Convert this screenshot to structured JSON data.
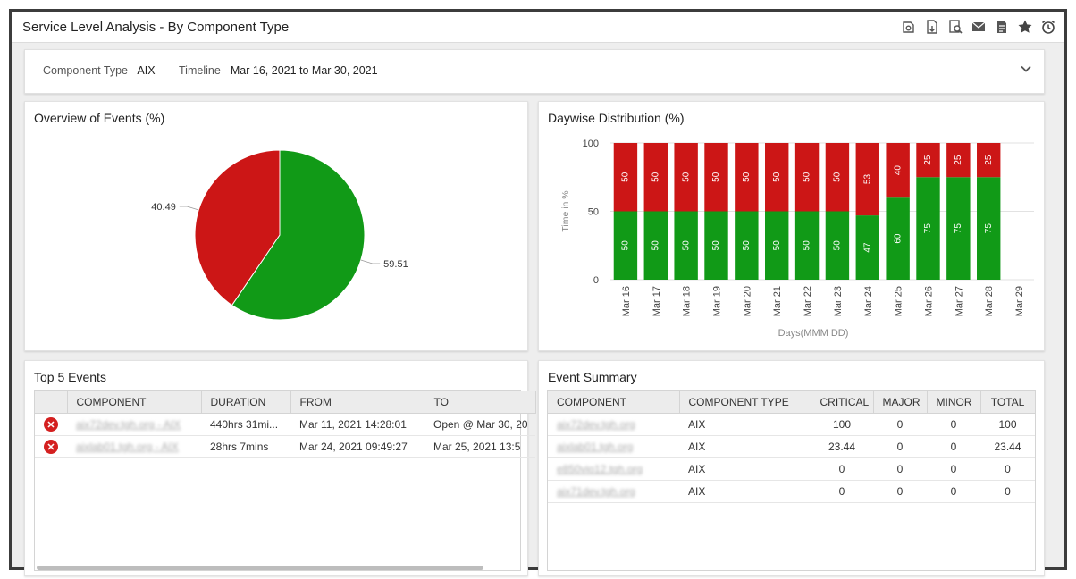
{
  "header": {
    "title": "Service Level Analysis - By Component Type",
    "toolbar": [
      "wrench-settings-icon",
      "pdf-export-icon",
      "search-report-icon",
      "mail-icon",
      "document-icon",
      "favorite-star-icon",
      "alarm-clock-icon"
    ]
  },
  "filters": {
    "component_label": "Component Type - ",
    "component_value": "AIX",
    "timeline_label": "Timeline - ",
    "timeline_value": "Mar 16, 2021 to Mar 30, 2021"
  },
  "colors": {
    "critical": "#cc1616",
    "ok": "#119a17"
  },
  "overview": {
    "title": "Overview of Events (%)",
    "chart_data": {
      "type": "pie",
      "labels": [
        "40.49",
        "59.51"
      ],
      "values": [
        40.49,
        59.51
      ],
      "colors": [
        "#cc1616",
        "#119a17"
      ]
    }
  },
  "daywise": {
    "title": "Daywise Distribution (%)",
    "chart_data": {
      "type": "bar",
      "stacked": true,
      "xlabel": "Days(MMM DD)",
      "ylabel": "Time in %",
      "ylim": [
        0,
        100
      ],
      "yticks": [
        0,
        50,
        100
      ],
      "categories": [
        "Mar 16",
        "Mar 17",
        "Mar 18",
        "Mar 19",
        "Mar 20",
        "Mar 21",
        "Mar 22",
        "Mar 23",
        "Mar 24",
        "Mar 25",
        "Mar 26",
        "Mar 27",
        "Mar 28",
        "Mar 29"
      ],
      "series": [
        {
          "color": "#119a17",
          "values": [
            50,
            50,
            50,
            50,
            50,
            50,
            50,
            50,
            47,
            60,
            75,
            75,
            75,
            null
          ]
        },
        {
          "color": "#cc1616",
          "values": [
            50,
            50,
            50,
            50,
            50,
            50,
            50,
            50,
            53,
            40,
            25,
            25,
            25,
            null
          ]
        }
      ]
    }
  },
  "top_events": {
    "title": "Top 5 Events",
    "columns": [
      "",
      "COMPONENT",
      "DURATION",
      "FROM",
      "TO"
    ],
    "rows": [
      {
        "component": "aix72dev.tgh.org - AIX",
        "duration": "440hrs 31mi...",
        "from": "Mar 11, 2021 14:28:01",
        "to": "Open @ Mar 30, 20"
      },
      {
        "component": "aixlab01.tgh.org - AIX",
        "duration": "28hrs 7mins",
        "from": "Mar 24, 2021 09:49:27",
        "to": "Mar 25, 2021 13:5"
      }
    ]
  },
  "event_summary": {
    "title": "Event Summary",
    "columns": [
      "COMPONENT",
      "COMPONENT TYPE",
      "CRITICAL",
      "MAJOR",
      "MINOR",
      "TOTAL"
    ],
    "rows": [
      {
        "component": "aix72dev.tgh.org",
        "type": "AIX",
        "critical": "100",
        "major": "0",
        "minor": "0",
        "total": "100"
      },
      {
        "component": "aixlab01.tgh.org",
        "type": "AIX",
        "critical": "23.44",
        "major": "0",
        "minor": "0",
        "total": "23.44"
      },
      {
        "component": "e850vio12.tgh.org",
        "type": "AIX",
        "critical": "0",
        "major": "0",
        "minor": "0",
        "total": "0"
      },
      {
        "component": "aix71dev.tgh.org",
        "type": "AIX",
        "critical": "0",
        "major": "0",
        "minor": "0",
        "total": "0"
      }
    ]
  }
}
